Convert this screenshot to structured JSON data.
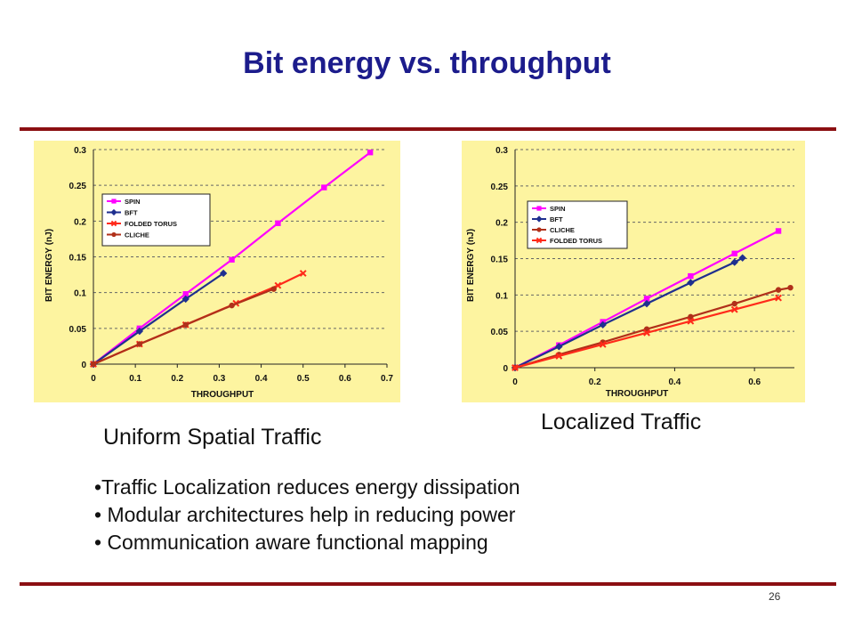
{
  "slide": {
    "title": "Bit energy vs. throughput",
    "bullets": [
      "•Traffic Localization reduces energy dissipation",
      "• Modular architectures help in reducing power",
      "• Communication aware functional mapping"
    ],
    "page_number": "26"
  },
  "colors": {
    "title": "#1c1c8c",
    "rule": "#8b0f12",
    "chart_bg": "#fdf4a0",
    "grid": "#666666"
  },
  "chart_data": [
    {
      "type": "line",
      "caption": "Uniform Spatial Traffic",
      "title": "",
      "xlabel": "THROUGHPUT",
      "ylabel": "BIT ENERGY (nJ)",
      "xlim": [
        0,
        0.7
      ],
      "ylim": [
        0,
        0.3
      ],
      "x_ticks": [
        "0",
        "0.1",
        "0.2",
        "0.3",
        "0.4",
        "0.5",
        "0.6",
        "0.7"
      ],
      "y_ticks": [
        "0",
        "0.05",
        "0.1",
        "0.15",
        "0.2",
        "0.25",
        "0.3"
      ],
      "grid": "horizontal dashed",
      "legend_position": "upper-left",
      "series": [
        {
          "name": "SPIN",
          "color": "#ff00ff",
          "marker": "square",
          "points": [
            [
              0,
              0
            ],
            [
              0.11,
              0.05
            ],
            [
              0.22,
              0.098
            ],
            [
              0.33,
              0.146
            ],
            [
              0.44,
              0.197
            ],
            [
              0.55,
              0.247
            ],
            [
              0.66,
              0.296
            ]
          ]
        },
        {
          "name": "BFT",
          "color": "#1f2f8f",
          "marker": "diamond",
          "points": [
            [
              0,
              0
            ],
            [
              0.11,
              0.046
            ],
            [
              0.22,
              0.091
            ],
            [
              0.31,
              0.127
            ]
          ]
        },
        {
          "name": "FOLDED TORUS",
          "color": "#ff2a1a",
          "marker": "x",
          "points": [
            [
              0,
              0
            ],
            [
              0.11,
              0.028
            ],
            [
              0.22,
              0.055
            ],
            [
              0.34,
              0.085
            ],
            [
              0.44,
              0.11
            ],
            [
              0.5,
              0.127
            ]
          ]
        },
        {
          "name": "CLICHE",
          "color": "#b0301a",
          "marker": "circle",
          "points": [
            [
              0,
              0
            ],
            [
              0.11,
              0.028
            ],
            [
              0.22,
              0.055
            ],
            [
              0.33,
              0.082
            ],
            [
              0.43,
              0.105
            ]
          ]
        }
      ]
    },
    {
      "type": "line",
      "caption": "Localized Traffic",
      "title": "",
      "xlabel": "THROUGHPUT",
      "ylabel": "BIT ENERGY (nJ)",
      "xlim": [
        0,
        0.7
      ],
      "ylim": [
        0,
        0.3
      ],
      "x_ticks": [
        "0",
        "0.2",
        "0.4",
        "0.6"
      ],
      "x_tick_values": [
        0,
        0.2,
        0.4,
        0.6
      ],
      "y_ticks": [
        "0",
        "0.05",
        "0.1",
        "0.15",
        "0.2",
        "0.25",
        "0.3"
      ],
      "grid": "horizontal dashed",
      "legend_position": "upper-left",
      "series": [
        {
          "name": "SPIN",
          "color": "#ff00ff",
          "marker": "square",
          "points": [
            [
              0,
              0
            ],
            [
              0.11,
              0.031
            ],
            [
              0.22,
              0.063
            ],
            [
              0.33,
              0.095
            ],
            [
              0.44,
              0.126
            ],
            [
              0.55,
              0.157
            ],
            [
              0.66,
              0.188
            ]
          ]
        },
        {
          "name": "BFT",
          "color": "#1f2f8f",
          "marker": "diamond",
          "points": [
            [
              0,
              0
            ],
            [
              0.11,
              0.029
            ],
            [
              0.22,
              0.059
            ],
            [
              0.33,
              0.088
            ],
            [
              0.44,
              0.117
            ],
            [
              0.55,
              0.145
            ],
            [
              0.57,
              0.151
            ]
          ]
        },
        {
          "name": "CLICHE",
          "color": "#b0301a",
          "marker": "circle",
          "points": [
            [
              0,
              0
            ],
            [
              0.11,
              0.018
            ],
            [
              0.22,
              0.035
            ],
            [
              0.33,
              0.053
            ],
            [
              0.44,
              0.07
            ],
            [
              0.55,
              0.088
            ],
            [
              0.66,
              0.107
            ],
            [
              0.69,
              0.11
            ]
          ]
        },
        {
          "name": "FOLDED TORUS",
          "color": "#ff2a1a",
          "marker": "x",
          "points": [
            [
              0,
              0
            ],
            [
              0.11,
              0.016
            ],
            [
              0.22,
              0.032
            ],
            [
              0.33,
              0.048
            ],
            [
              0.44,
              0.064
            ],
            [
              0.55,
              0.08
            ],
            [
              0.66,
              0.096
            ]
          ]
        }
      ]
    }
  ]
}
